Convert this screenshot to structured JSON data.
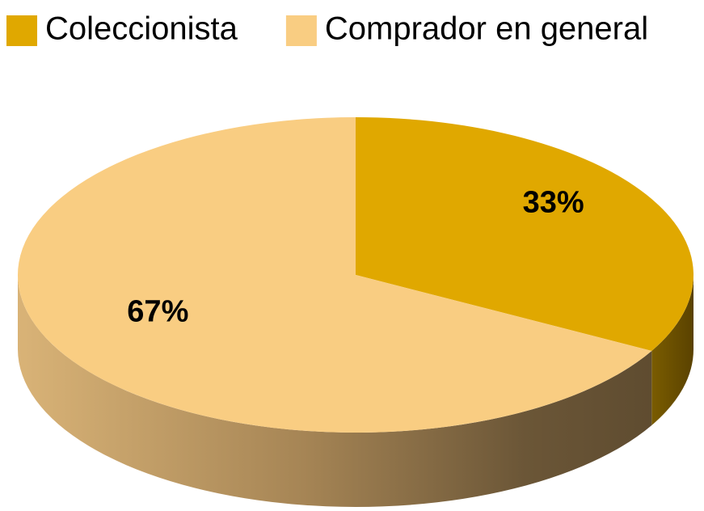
{
  "chart_data": {
    "type": "pie",
    "categories": [
      "Coleccionista",
      "Comprador en general"
    ],
    "values": [
      33,
      67
    ],
    "value_labels": [
      "33%",
      "67%"
    ],
    "colors": [
      "#e0a800",
      "#f9cd82"
    ],
    "legend": "top"
  }
}
